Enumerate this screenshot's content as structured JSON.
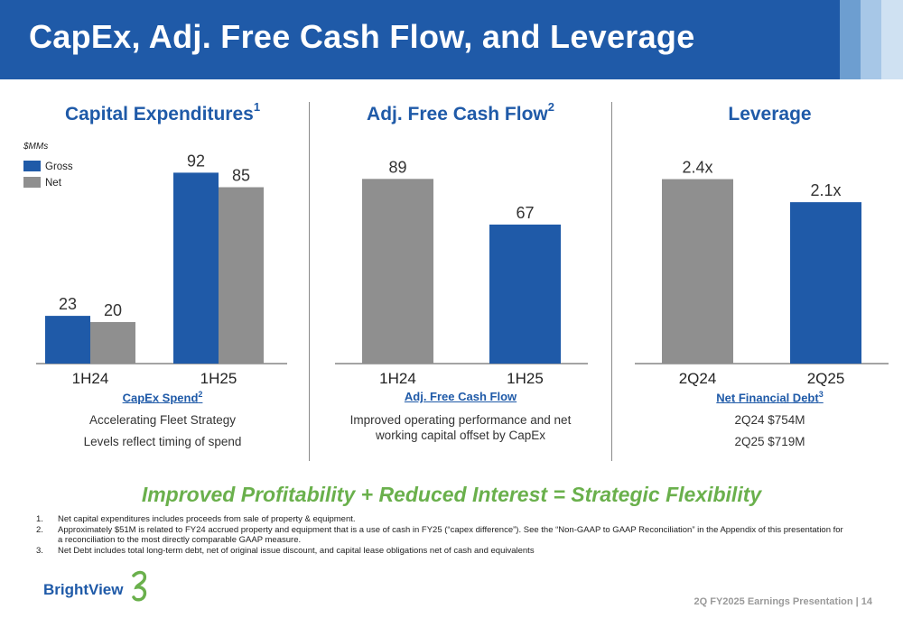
{
  "header": {
    "title": "CapEx, Adj. Free Cash Flow, and Leverage",
    "color": "#1f5aa8",
    "accent_colors": [
      "#6d9ed0",
      "#a7c7e7",
      "#cfe1f2"
    ]
  },
  "colors": {
    "gross": "#1f5aa8",
    "net": "#8f8f8f",
    "tagline": "#6ab04c"
  },
  "columns": [
    {
      "title": "Capital Expenditures",
      "title_sup": "1",
      "sub_heading": "CapEx Spend",
      "sub_heading_sup": "2",
      "lines": [
        "Accelerating Fleet Strategy",
        "Levels reflect timing of spend"
      ]
    },
    {
      "title": "Adj. Free Cash Flow",
      "title_sup": "2",
      "sub_heading": "Adj. Free Cash Flow",
      "sub_heading_sup": "",
      "lines": [
        "Improved operating performance and net working capital offset by CapEx"
      ]
    },
    {
      "title": "Leverage",
      "title_sup": "",
      "sub_heading": "Net Financial Debt",
      "sub_heading_sup": "3",
      "lines": [
        "2Q24 $754M",
        "2Q25 $719M"
      ]
    }
  ],
  "chart_data": [
    {
      "type": "bar",
      "unit_label": "$MMs",
      "categories": [
        "1H24",
        "1H25"
      ],
      "series": [
        {
          "name": "Gross",
          "values": [
            23,
            92
          ],
          "labels": [
            "23",
            "92"
          ],
          "color": "#1f5aa8"
        },
        {
          "name": "Net",
          "values": [
            20,
            85
          ],
          "labels": [
            "20",
            "85"
          ],
          "color": "#8f8f8f"
        }
      ],
      "ylim": [
        0,
        100
      ],
      "legend": "top-left"
    },
    {
      "type": "bar",
      "categories": [
        "1H24",
        "1H25"
      ],
      "series": [
        {
          "values": [
            89,
            67
          ],
          "labels": [
            "89",
            "67"
          ],
          "colors": [
            "#8f8f8f",
            "#1f5aa8"
          ]
        }
      ],
      "ylim": [
        0,
        100
      ]
    },
    {
      "type": "bar",
      "categories": [
        "2Q24",
        "2Q25"
      ],
      "series": [
        {
          "values": [
            2.4,
            2.1
          ],
          "labels": [
            "2.4x",
            "2.1x"
          ],
          "colors": [
            "#8f8f8f",
            "#1f5aa8"
          ]
        }
      ],
      "ylim": [
        0,
        2.7
      ]
    }
  ],
  "tagline": "Improved Profitability + Reduced Interest = Strategic Flexibility",
  "footnotes": [
    {
      "num": "1.",
      "text": "Net capital expenditures includes proceeds from sale of property & equipment."
    },
    {
      "num": "2.",
      "text": "Approximately $51M is related to FY24 accrued property and equipment that is a use of cash in FY25 (“capex difference”). See the “Non-GAAP to GAAP Reconciliation” in the Appendix of this presentation for a reconciliation to the most directly comparable GAAP measure."
    },
    {
      "num": "3.",
      "text": "Net Debt includes total long-term debt, net of original issue discount, and capital lease obligations net of cash and equivalents"
    }
  ],
  "logo": {
    "text": "BrightView"
  },
  "footer": "2Q FY2025 Earnings Presentation | 14"
}
